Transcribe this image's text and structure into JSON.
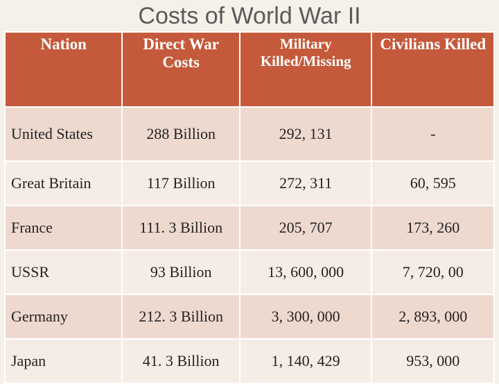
{
  "title": "Costs of World War II",
  "table": {
    "type": "table",
    "header_bg": "#c45a3b",
    "header_fg": "#ffffff",
    "row_alt_colors": [
      "#eed9cf",
      "#f6ece6"
    ],
    "border_color": "#ffffff",
    "columns": [
      {
        "key": "nation",
        "label": "Nation"
      },
      {
        "key": "cost",
        "label": "Direct War Costs"
      },
      {
        "key": "mil",
        "label": "Military Killed/Missing"
      },
      {
        "key": "civ",
        "label": "Civilians Killed"
      }
    ],
    "rows": [
      {
        "nation": "United States",
        "cost": "288 Billion",
        "mil": "292, 131",
        "civ": "-"
      },
      {
        "nation": "Great Britain",
        "cost": "117 Billion",
        "mil": "272, 311",
        "civ": "60, 595"
      },
      {
        "nation": "France",
        "cost": "111. 3 Billion",
        "mil": "205, 707",
        "civ": "173, 260"
      },
      {
        "nation": "USSR",
        "cost": "93 Billion",
        "mil": "13, 600, 000",
        "civ": "7, 720, 00"
      },
      {
        "nation": "Germany",
        "cost": "212. 3 Billion",
        "mil": "3, 300, 000",
        "civ": "2, 893, 000"
      },
      {
        "nation": "Japan",
        "cost": "41. 3 Billion",
        "mil": "1, 140, 429",
        "civ": "953, 000"
      }
    ]
  }
}
